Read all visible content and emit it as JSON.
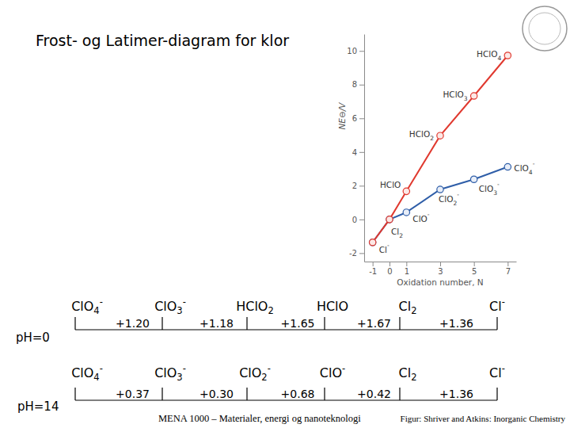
{
  "title": "Frost- og Latimer-diagram for klor",
  "chart_data": {
    "type": "line",
    "x_label": "Oxidation number, N",
    "y_label": "NE⊖/V",
    "x": [
      -1,
      0,
      1,
      3,
      5,
      7
    ],
    "xlim": [
      -1.5,
      7.5
    ],
    "xticks": [
      -1,
      0,
      1,
      3,
      5,
      7
    ],
    "ylim": [
      -2.5,
      11
    ],
    "yticks": [
      -2,
      0,
      2,
      4,
      6,
      8,
      10
    ],
    "grid": false,
    "series": [
      {
        "color": "#e0392f",
        "marker": "circle",
        "line_style": "solid",
        "values": [
          -1.36,
          0,
          1.67,
          4.97,
          7.33,
          9.73
        ],
        "labels": [
          "Cl-",
          "Cl2",
          "HClO",
          "HClO2",
          "HClO3",
          "HClO4"
        ]
      },
      {
        "color": "#2f5ea8",
        "marker": "circle",
        "line_style": "solid",
        "values": [
          -1.36,
          0,
          0.42,
          1.78,
          2.38,
          3.12
        ],
        "labels": [
          null,
          null,
          "ClO-",
          "ClO2-",
          "ClO3-",
          "ClO4-"
        ]
      }
    ]
  },
  "latimer": [
    {
      "label": "pH=0",
      "species": [
        "ClO4-",
        "ClO3-",
        "HClO2",
        "HClO",
        "Cl2",
        "Cl-"
      ],
      "potentials": [
        "+1.20",
        "+1.18",
        "+1.65",
        "+1.67",
        "+1.36"
      ]
    },
    {
      "label": "pH=14",
      "species": [
        "ClO4-",
        "ClO3-",
        "ClO2-",
        "ClO-",
        "Cl2",
        "Cl-"
      ],
      "potentials": [
        "+0.37",
        "+0.30",
        "+0.68",
        "+0.42",
        "+1.36"
      ]
    }
  ],
  "footer": "MENA 1000 – Materialer, energi og nanoteknologi",
  "credit": "Figur: Shriver and Atkins: Inorganic Chemistry"
}
